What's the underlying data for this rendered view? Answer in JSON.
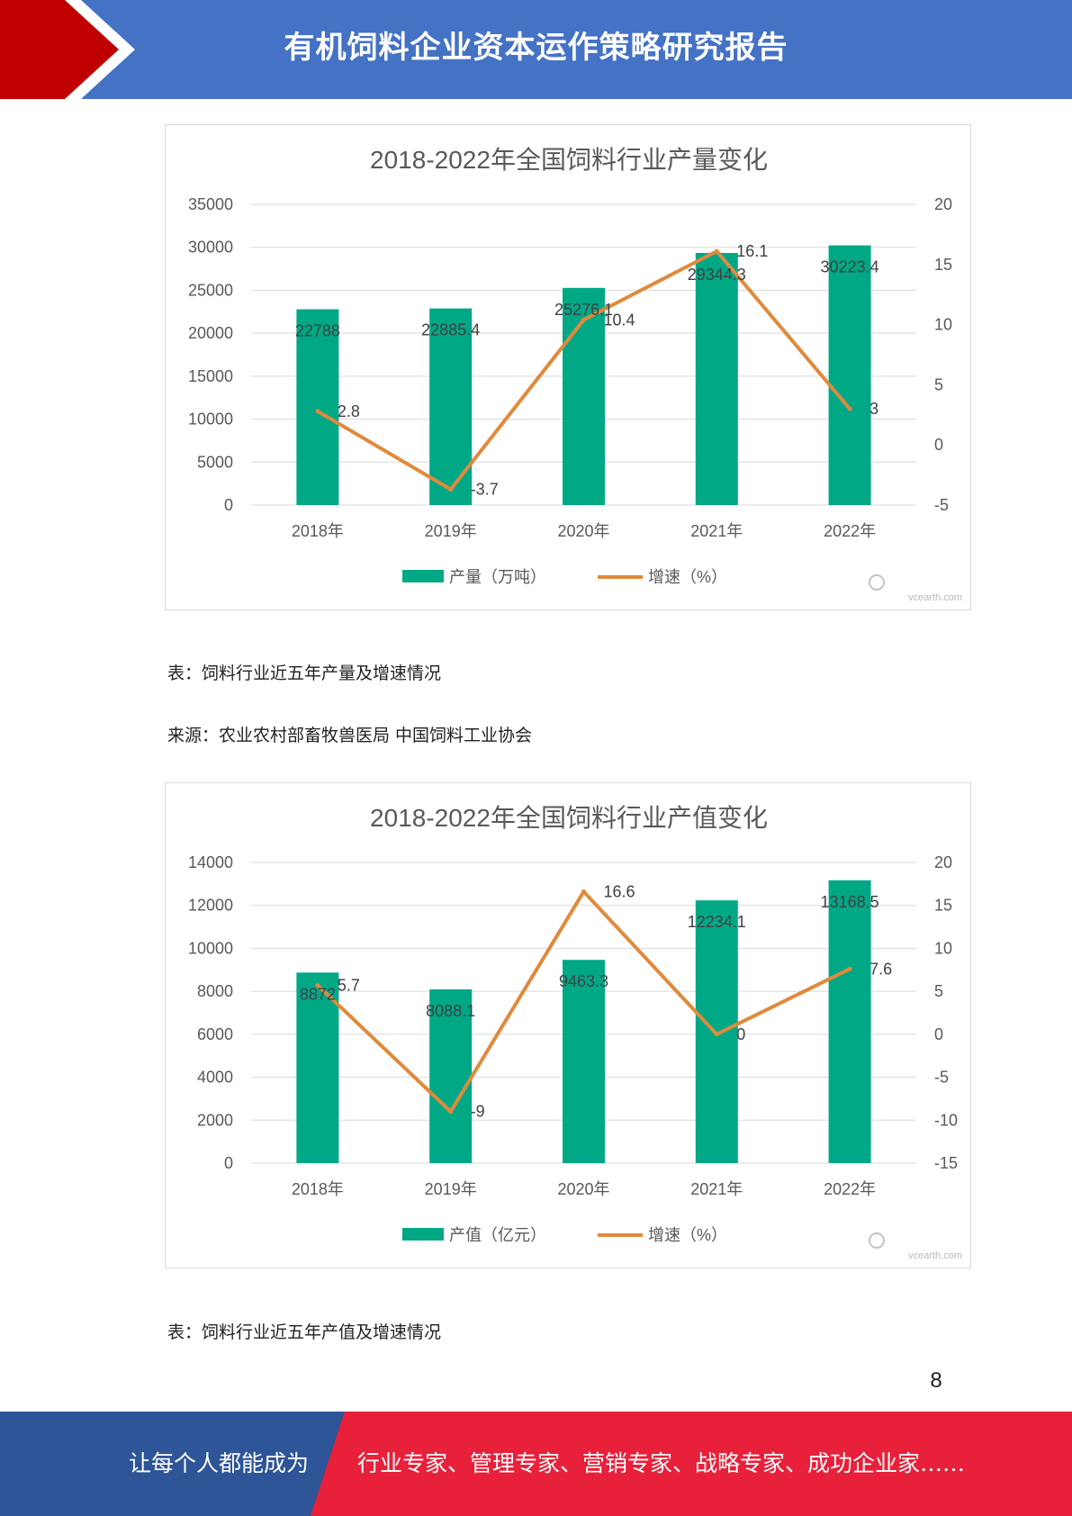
{
  "header": {
    "title": "有机饲料企业资本运作策略研究报告",
    "colors": {
      "band": "#4472c4",
      "arrow": "#c00000"
    }
  },
  "chart_data": [
    {
      "type": "bar+line",
      "title": "2018-2022年全国饲料行业产量变化",
      "categories": [
        "2018年",
        "2019年",
        "2020年",
        "2021年",
        "2022年"
      ],
      "series": [
        {
          "name": "产量（万吨）",
          "kind": "bar",
          "axis": "left",
          "values": [
            22788,
            22885.4,
            25276.1,
            29344.3,
            30223.4
          ],
          "labels": [
            "22788",
            "22885.4",
            "25276.1",
            "29344.3",
            "30223.4"
          ],
          "color": "#00a886"
        },
        {
          "name": "增速（%）",
          "kind": "line",
          "axis": "right",
          "values": [
            2.8,
            -3.7,
            10.4,
            16.1,
            3
          ],
          "labels": [
            "2.8",
            "-3.7",
            "10.4",
            "16.1",
            "3"
          ],
          "color": "#e08a3c"
        }
      ],
      "yleft": {
        "min": 0,
        "max": 35000,
        "ticks": [
          "0",
          "5000",
          "10000",
          "15000",
          "20000",
          "25000",
          "30000",
          "35000"
        ]
      },
      "yright": {
        "min": -5,
        "max": 20,
        "ticks": [
          "-5",
          "0",
          "5",
          "10",
          "15",
          "20"
        ]
      },
      "grid": true,
      "legend": "bottom",
      "watermark": "vcearth.com"
    },
    {
      "type": "bar+line",
      "title": "2018-2022年全国饲料行业产值变化",
      "categories": [
        "2018年",
        "2019年",
        "2020年",
        "2021年",
        "2022年"
      ],
      "series": [
        {
          "name": "产值（亿元）",
          "kind": "bar",
          "axis": "left",
          "values": [
            8872,
            8088.1,
            9463.3,
            12234.1,
            13168.5
          ],
          "labels": [
            "8872",
            "8088.1",
            "9463.3",
            "12234.1",
            "13168.5"
          ],
          "color": "#00a886"
        },
        {
          "name": "增速（%）",
          "kind": "line",
          "axis": "right",
          "values": [
            5.7,
            -9,
            16.6,
            0,
            7.6
          ],
          "labels": [
            "5.7",
            "-9",
            "16.6",
            "0",
            "7.6"
          ],
          "color": "#e08a3c"
        }
      ],
      "yleft": {
        "min": 0,
        "max": 14000,
        "ticks": [
          "0",
          "2000",
          "4000",
          "6000",
          "8000",
          "10000",
          "12000",
          "14000"
        ]
      },
      "yright": {
        "min": -15,
        "max": 20,
        "ticks": [
          "-15",
          "-10",
          "-5",
          "0",
          "5",
          "10",
          "15",
          "20"
        ]
      },
      "grid": true,
      "legend": "bottom",
      "watermark": "vcearth.com"
    }
  ],
  "captions": {
    "chart1_caption": "表：饲料行业近五年产量及增速情况",
    "chart1_source": "来源：农业农村部畜牧兽医局  中国饲料工业协会",
    "chart2_caption": "表：饲料行业近五年产值及增速情况"
  },
  "page_number": "8",
  "footer": {
    "left_text": "让每个人都能成为",
    "right_text": "行业专家、管理专家、营销专家、战略专家、成功企业家……",
    "colors": {
      "left": "#2e5597",
      "right": "#e8203a"
    }
  }
}
